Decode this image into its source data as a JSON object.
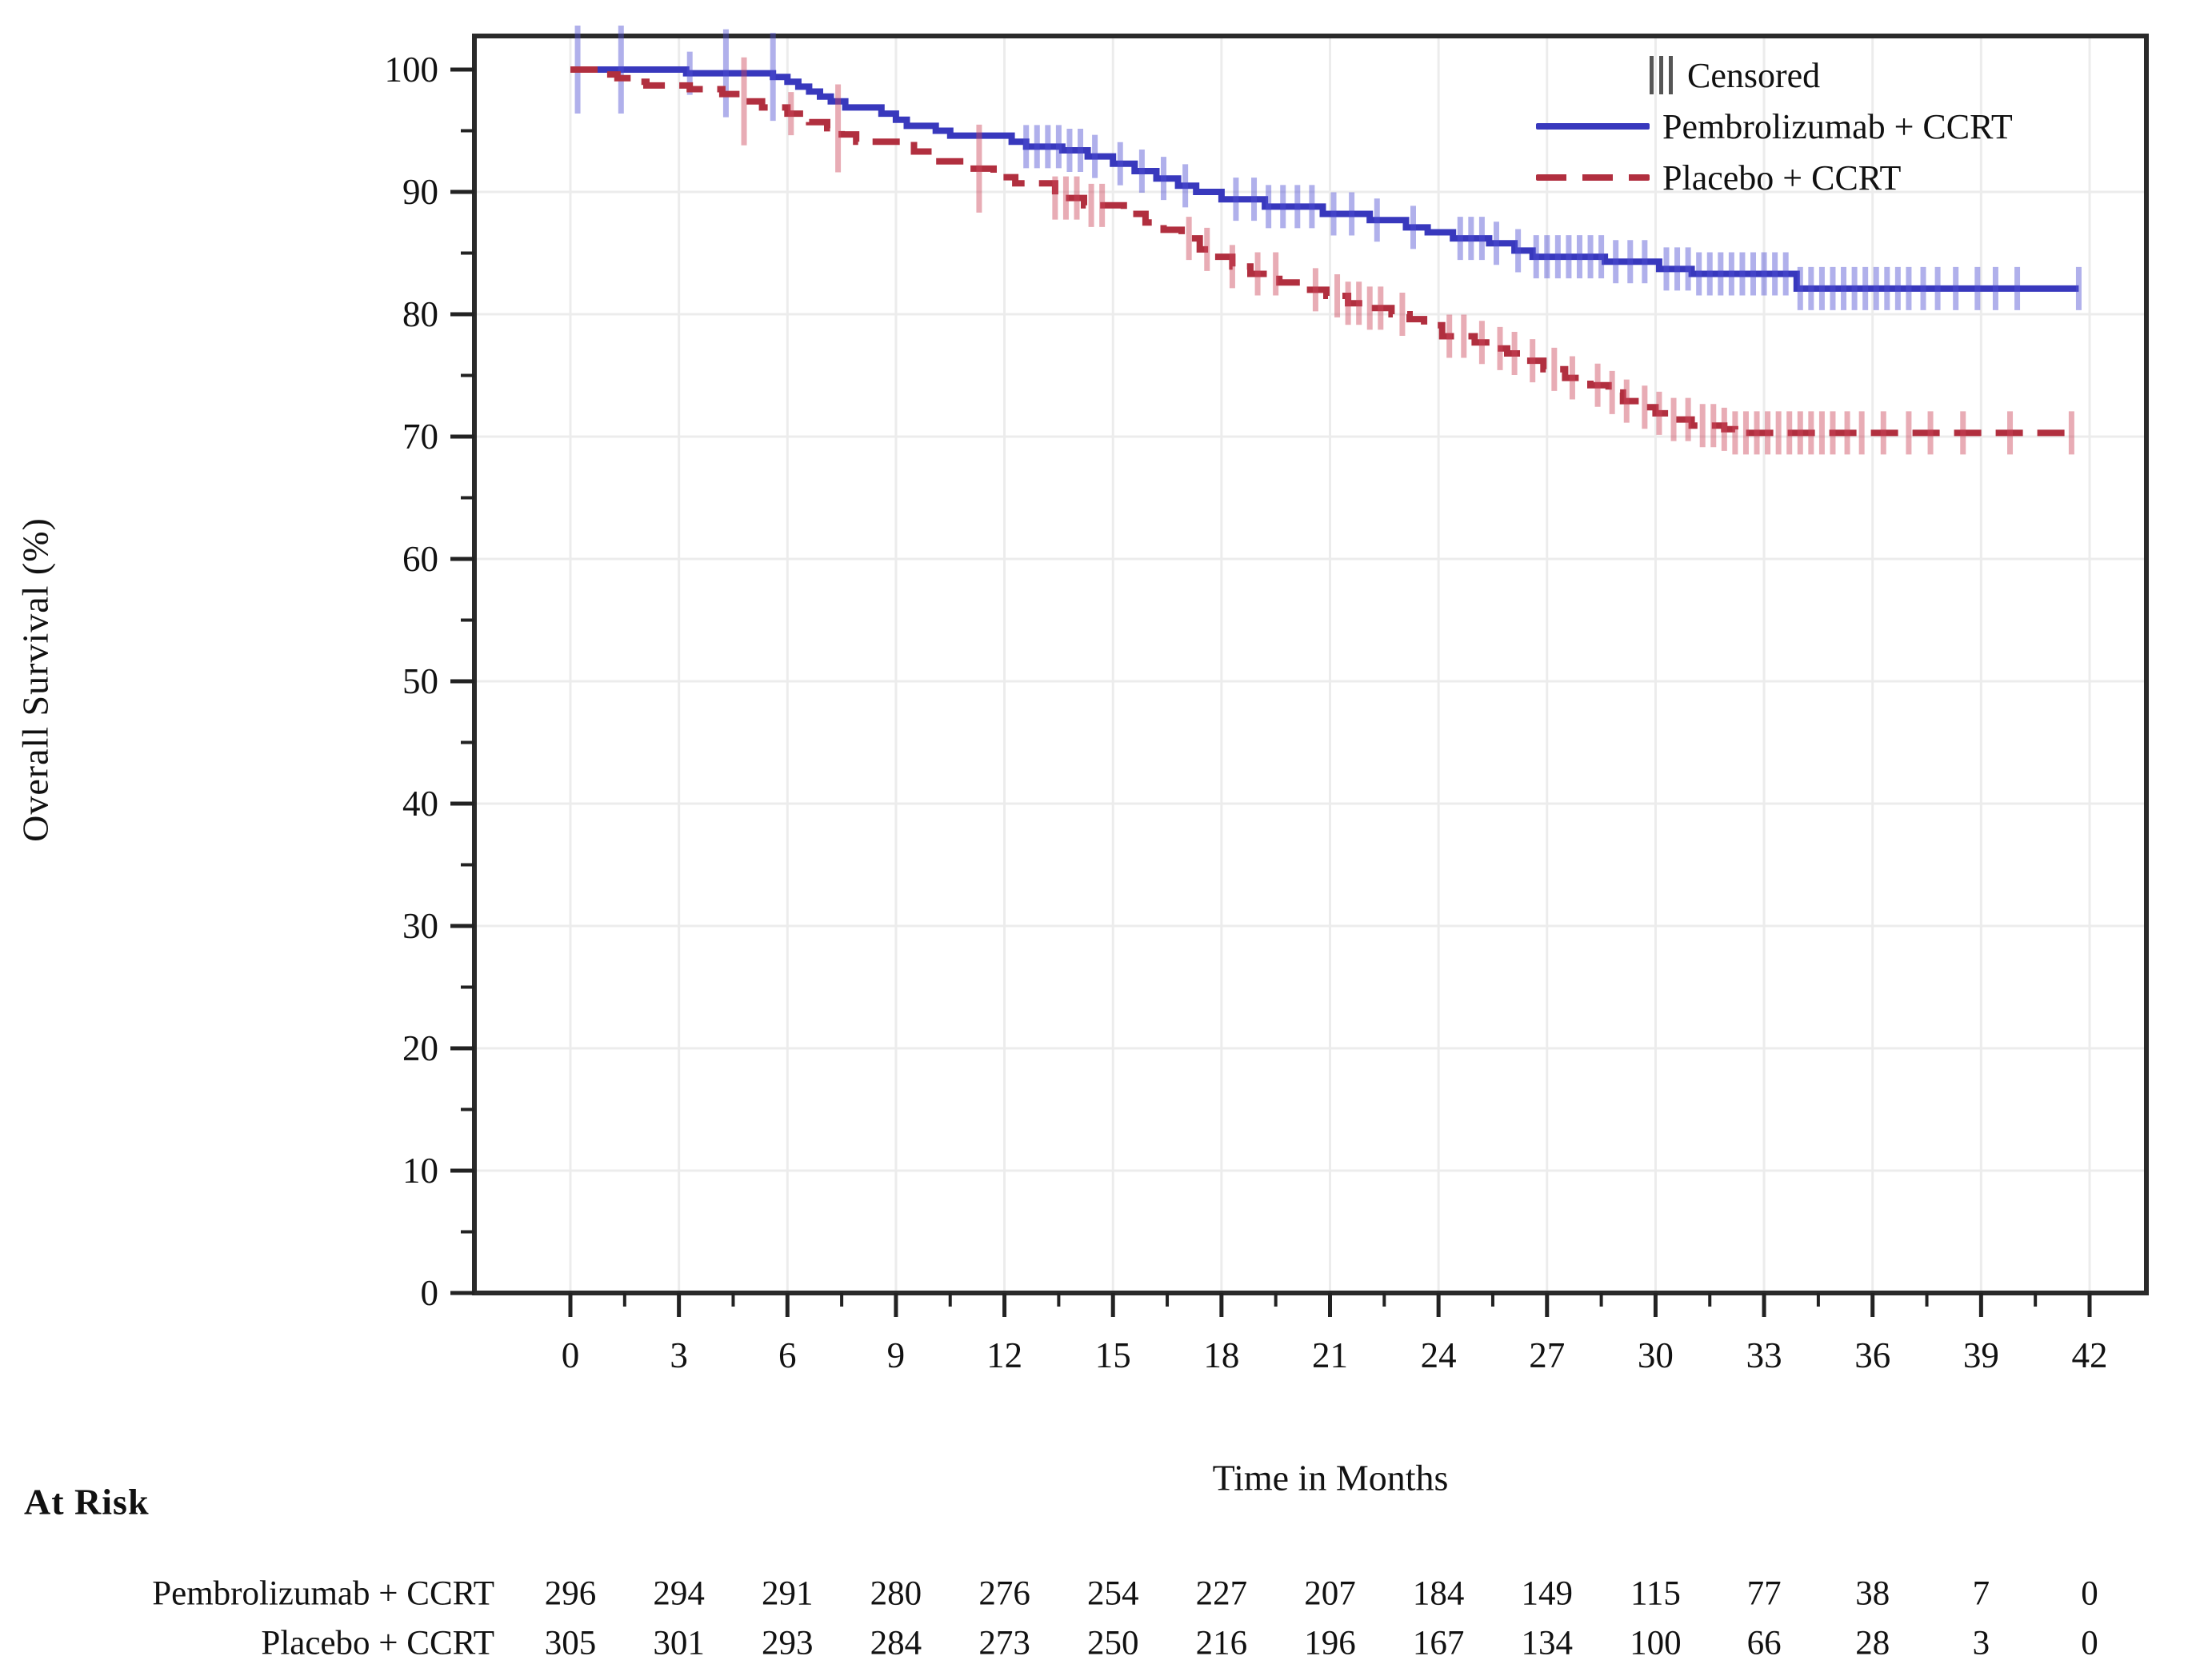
{
  "figure": {
    "y_axis_title": "Overall Survival (%)",
    "x_axis_title": "Time in Months",
    "at_risk_header": "At Risk",
    "legend": {
      "censored_label": "Censored",
      "series_labels": [
        "Pembrolizumab + CCRT",
        "Placebo + CCRT"
      ]
    }
  },
  "chart_data": {
    "type": "line",
    "subtype": "kaplan-meier-step",
    "title": "",
    "xlabel": "Time in Months",
    "ylabel": "Overall Survival (%)",
    "xlim": [
      0,
      42
    ],
    "ylim": [
      0,
      100
    ],
    "x_ticks": [
      0,
      3,
      6,
      9,
      12,
      15,
      18,
      21,
      24,
      27,
      30,
      33,
      36,
      39,
      42
    ],
    "y_ticks": [
      0,
      10,
      20,
      30,
      40,
      50,
      60,
      70,
      80,
      90,
      100
    ],
    "grid": true,
    "legend_position": "top-right-inside",
    "series": [
      {
        "name": "Pembrolizumab + CCRT",
        "color": "#3838bd",
        "censor_color": "rgba(80,80,210,0.45)",
        "style": "solid",
        "end_month": 41.7,
        "points": [
          [
            0,
            100
          ],
          [
            3.2,
            99.7
          ],
          [
            5.6,
            99.4
          ],
          [
            6.0,
            99.0
          ],
          [
            6.3,
            98.6
          ],
          [
            6.6,
            98.2
          ],
          [
            6.9,
            97.8
          ],
          [
            7.2,
            97.4
          ],
          [
            7.6,
            96.9
          ],
          [
            8.6,
            96.4
          ],
          [
            9.0,
            95.9
          ],
          [
            9.3,
            95.4
          ],
          [
            10.1,
            95.0
          ],
          [
            10.5,
            94.6
          ],
          [
            12.2,
            94.1
          ],
          [
            12.6,
            93.7
          ],
          [
            13.6,
            93.4
          ],
          [
            14.3,
            92.9
          ],
          [
            15.0,
            92.3
          ],
          [
            15.6,
            91.7
          ],
          [
            16.2,
            91.1
          ],
          [
            16.8,
            90.5
          ],
          [
            17.3,
            90.0
          ],
          [
            18.0,
            89.4
          ],
          [
            19.2,
            88.8
          ],
          [
            20.8,
            88.2
          ],
          [
            22.1,
            87.7
          ],
          [
            23.1,
            87.1
          ],
          [
            23.7,
            86.7
          ],
          [
            24.4,
            86.2
          ],
          [
            25.4,
            85.8
          ],
          [
            26.1,
            85.2
          ],
          [
            26.6,
            84.7
          ],
          [
            28.6,
            84.3
          ],
          [
            30.1,
            83.7
          ],
          [
            31.0,
            83.3
          ],
          [
            33.9,
            82.1
          ]
        ],
        "censors": [
          [
            0.2,
            1
          ],
          [
            1.4,
            1
          ],
          [
            3.3,
            0
          ],
          [
            4.3,
            1
          ],
          [
            5.6,
            1
          ],
          [
            12.6,
            0
          ],
          [
            12.9,
            0
          ],
          [
            13.2,
            0
          ],
          [
            13.5,
            0
          ],
          [
            13.8,
            0
          ],
          [
            14.1,
            0
          ],
          [
            14.5,
            0
          ],
          [
            15.2,
            0
          ],
          [
            15.8,
            0
          ],
          [
            16.4,
            0
          ],
          [
            17.0,
            0
          ],
          [
            18.4,
            0
          ],
          [
            18.9,
            0
          ],
          [
            19.3,
            0
          ],
          [
            19.7,
            0
          ],
          [
            20.1,
            0
          ],
          [
            20.5,
            0
          ],
          [
            21.1,
            0
          ],
          [
            21.6,
            0
          ],
          [
            22.3,
            0
          ],
          [
            23.3,
            0
          ],
          [
            24.6,
            0
          ],
          [
            24.9,
            0
          ],
          [
            25.2,
            0
          ],
          [
            25.6,
            0
          ],
          [
            26.2,
            0
          ],
          [
            26.7,
            0
          ],
          [
            27.0,
            0
          ],
          [
            27.3,
            0
          ],
          [
            27.6,
            0
          ],
          [
            27.9,
            0
          ],
          [
            28.2,
            0
          ],
          [
            28.5,
            0
          ],
          [
            28.9,
            0
          ],
          [
            29.3,
            0
          ],
          [
            29.7,
            0
          ],
          [
            30.3,
            0
          ],
          [
            30.6,
            0
          ],
          [
            30.9,
            0
          ],
          [
            31.2,
            0
          ],
          [
            31.5,
            0
          ],
          [
            31.8,
            0
          ],
          [
            32.1,
            0
          ],
          [
            32.4,
            0
          ],
          [
            32.7,
            0
          ],
          [
            33.0,
            0
          ],
          [
            33.3,
            0
          ],
          [
            33.6,
            0
          ],
          [
            34.0,
            0
          ],
          [
            34.3,
            0
          ],
          [
            34.6,
            0
          ],
          [
            34.9,
            0
          ],
          [
            35.2,
            0
          ],
          [
            35.5,
            0
          ],
          [
            35.8,
            0
          ],
          [
            36.1,
            0
          ],
          [
            36.4,
            0
          ],
          [
            36.7,
            0
          ],
          [
            37.0,
            0
          ],
          [
            37.4,
            0
          ],
          [
            37.8,
            0
          ],
          [
            38.3,
            0
          ],
          [
            38.9,
            0
          ],
          [
            39.4,
            0
          ],
          [
            40.0,
            0
          ],
          [
            41.7,
            0
          ]
        ]
      },
      {
        "name": "Placebo + CCRT",
        "color": "#b12f3f",
        "censor_color": "rgba(205,70,90,0.45)",
        "style": "dashed",
        "end_month": 41.6,
        "points": [
          [
            0,
            100
          ],
          [
            0.8,
            99.6
          ],
          [
            1.3,
            99.3
          ],
          [
            1.7,
            99.0
          ],
          [
            2.1,
            98.7
          ],
          [
            3.3,
            98.4
          ],
          [
            4.2,
            98.0
          ],
          [
            4.8,
            97.4
          ],
          [
            5.3,
            96.9
          ],
          [
            6.0,
            96.4
          ],
          [
            6.6,
            95.7
          ],
          [
            7.1,
            95.2
          ],
          [
            7.5,
            94.7
          ],
          [
            7.9,
            94.1
          ],
          [
            9.5,
            93.3
          ],
          [
            10.1,
            92.5
          ],
          [
            10.9,
            91.9
          ],
          [
            11.7,
            91.2
          ],
          [
            12.3,
            90.7
          ],
          [
            13.4,
            89.5
          ],
          [
            14.2,
            88.9
          ],
          [
            15.3,
            88.2
          ],
          [
            15.9,
            87.5
          ],
          [
            16.4,
            86.9
          ],
          [
            16.9,
            86.2
          ],
          [
            17.4,
            85.3
          ],
          [
            17.8,
            84.7
          ],
          [
            18.3,
            83.9
          ],
          [
            18.8,
            83.3
          ],
          [
            19.6,
            82.6
          ],
          [
            20.3,
            82.0
          ],
          [
            20.9,
            81.5
          ],
          [
            21.5,
            80.9
          ],
          [
            22.0,
            80.5
          ],
          [
            22.7,
            80.0
          ],
          [
            23.2,
            79.6
          ],
          [
            23.6,
            79.1
          ],
          [
            24.1,
            78.2
          ],
          [
            25.0,
            77.7
          ],
          [
            25.5,
            77.2
          ],
          [
            25.9,
            76.8
          ],
          [
            26.4,
            76.2
          ],
          [
            26.9,
            75.5
          ],
          [
            27.5,
            74.8
          ],
          [
            28.2,
            74.2
          ],
          [
            28.7,
            73.6
          ],
          [
            29.1,
            72.9
          ],
          [
            29.6,
            72.4
          ],
          [
            30.0,
            71.9
          ],
          [
            30.5,
            71.4
          ],
          [
            31.0,
            70.9
          ],
          [
            31.9,
            70.6
          ],
          [
            32.2,
            70.3
          ]
        ],
        "censors": [
          [
            4.8,
            1
          ],
          [
            6.1,
            0
          ],
          [
            7.4,
            1
          ],
          [
            11.3,
            1
          ],
          [
            13.4,
            0
          ],
          [
            13.7,
            0
          ],
          [
            14.0,
            0
          ],
          [
            14.4,
            0
          ],
          [
            14.7,
            0
          ],
          [
            17.1,
            0
          ],
          [
            17.6,
            0
          ],
          [
            18.3,
            0
          ],
          [
            19.0,
            0
          ],
          [
            19.5,
            0
          ],
          [
            20.6,
            0
          ],
          [
            21.2,
            0
          ],
          [
            21.5,
            0
          ],
          [
            21.8,
            0
          ],
          [
            22.1,
            0
          ],
          [
            22.4,
            0
          ],
          [
            23.0,
            0
          ],
          [
            24.3,
            0
          ],
          [
            24.7,
            0
          ],
          [
            25.2,
            0
          ],
          [
            25.7,
            0
          ],
          [
            26.1,
            0
          ],
          [
            26.6,
            0
          ],
          [
            27.2,
            0
          ],
          [
            27.7,
            0
          ],
          [
            28.4,
            0
          ],
          [
            28.8,
            0
          ],
          [
            29.2,
            0
          ],
          [
            29.7,
            0
          ],
          [
            30.1,
            0
          ],
          [
            30.5,
            0
          ],
          [
            30.9,
            0
          ],
          [
            31.3,
            0
          ],
          [
            31.6,
            0
          ],
          [
            31.9,
            0
          ],
          [
            32.2,
            0
          ],
          [
            32.5,
            0
          ],
          [
            32.8,
            0
          ],
          [
            33.1,
            0
          ],
          [
            33.4,
            0
          ],
          [
            33.7,
            0
          ],
          [
            34.0,
            0
          ],
          [
            34.3,
            0
          ],
          [
            34.6,
            0
          ],
          [
            34.9,
            0
          ],
          [
            35.3,
            0
          ],
          [
            35.7,
            0
          ],
          [
            36.3,
            0
          ],
          [
            37.0,
            0
          ],
          [
            37.6,
            0
          ],
          [
            38.5,
            0
          ],
          [
            39.8,
            0
          ],
          [
            41.5,
            0
          ]
        ]
      }
    ],
    "at_risk": {
      "times": [
        0,
        3,
        6,
        9,
        12,
        15,
        18,
        21,
        24,
        27,
        30,
        33,
        36,
        39,
        42
      ],
      "rows": [
        {
          "label": "Pembrolizumab + CCRT",
          "values": [
            296,
            294,
            291,
            280,
            276,
            254,
            227,
            207,
            184,
            149,
            115,
            77,
            38,
            7,
            0
          ]
        },
        {
          "label": "Placebo + CCRT",
          "values": [
            305,
            301,
            293,
            284,
            273,
            250,
            216,
            196,
            167,
            134,
            100,
            66,
            28,
            3,
            0
          ]
        }
      ]
    }
  }
}
